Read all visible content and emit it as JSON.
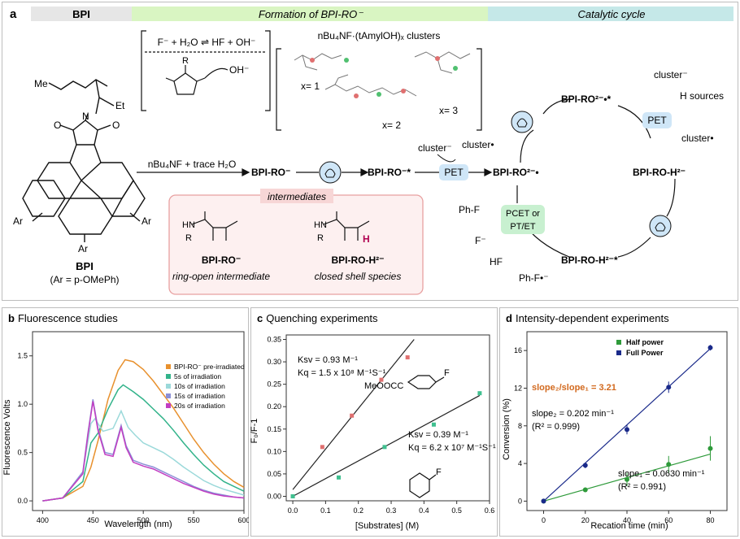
{
  "figure": {
    "panel_a": {
      "letter": "a",
      "header": {
        "bpi": "BPI",
        "formation": "Formation of BPI-RO⁻",
        "catalytic": "Catalytic cycle"
      },
      "colors": {
        "bpi_bar": "#e6e6e6",
        "formation_bar": "#d9f5c2",
        "catalytic_bar": "#c5e8e8",
        "pet_box": "#cfe6f7",
        "pcet_box": "#c8f0d0",
        "intermediates_border": "#e8a0a0",
        "intermediates_bg": "#fdf0f0",
        "accent_H": "#b00050"
      },
      "equation": "F⁻ + H₂O ⇌ HF + OH⁻",
      "oh_label": "OH⁻",
      "cluster_title": "nBu₄NF·(tAmylOH)ₓ clusters",
      "x1": "x= 1",
      "x2": "x= 2",
      "x3": "x= 3",
      "bpi_label": "BPI",
      "bpi_sub": "(Ar = p-OMePh)",
      "me1": "Me",
      "et": "Et",
      "ar": "Ar",
      "arrow_reagent": "nBu₄NF + trace H₂O",
      "species_ro": "BPI-RO⁻",
      "species_ro_star": "BPI-RO⁻*",
      "cluster_minus": "cluster⁻",
      "cluster_dot": "cluster•",
      "pet": "PET",
      "species_ro2": "BPI-RO²⁻•",
      "species_ro2_star": "BPI-RO²⁻•*",
      "h_sources": "H sources",
      "species_roh": "BPI-RO-H²⁻",
      "species_roh_star": "BPI-RO-H²⁻*",
      "phf": "Ph-F",
      "fminus": "F⁻",
      "hf": "HF",
      "phf_rad": "Ph-F•⁻",
      "pcet": "PCET or",
      "ptet": "PT/ET",
      "intermediates_title": "intermediates",
      "int1_label": "BPI-RO⁻",
      "int1_caption": "ring-open intermediate",
      "int2_label": "BPI-RO-H²⁻",
      "int2_caption": "closed shell species"
    },
    "panel_b": {
      "letter": "b",
      "title": "Fluorescence studies",
      "chart_data": {
        "type": "line",
        "xlabel": "Wavelength (nm)",
        "ylabel": "Fluorescence Volts",
        "xlim": [
          390,
          600
        ],
        "ylim": [
          -0.1,
          1.75
        ],
        "xticks": [
          400,
          450,
          500,
          550,
          600
        ],
        "yticks": [
          0.0,
          0.5,
          1.0,
          1.5
        ],
        "series": [
          {
            "name": "BPI-RO⁻ pre-irradiated",
            "color": "#e8912e",
            "x": [
              400,
              420,
              440,
              448,
              455,
              465,
              475,
              482,
              490,
              500,
              510,
              520,
              530,
              540,
              550,
              560,
              570,
              580,
              590,
              600
            ],
            "y": [
              0.0,
              0.03,
              0.15,
              0.35,
              0.62,
              1.05,
              1.35,
              1.46,
              1.44,
              1.36,
              1.24,
              1.1,
              0.96,
              0.8,
              0.64,
              0.5,
              0.38,
              0.28,
              0.2,
              0.14
            ]
          },
          {
            "name": "5s of irradiation",
            "color": "#32b38a",
            "x": [
              400,
              420,
              440,
              448,
              455,
              465,
              475,
              480,
              490,
              500,
              510,
              520,
              530,
              540,
              550,
              560,
              570,
              580,
              590,
              600
            ],
            "y": [
              0.0,
              0.03,
              0.2,
              0.6,
              0.7,
              0.95,
              1.15,
              1.2,
              1.13,
              1.05,
              0.95,
              0.85,
              0.73,
              0.6,
              0.48,
              0.37,
              0.28,
              0.2,
              0.15,
              0.1
            ]
          },
          {
            "name": "10s of irradiation",
            "color": "#9bd9da",
            "x": [
              400,
              420,
              440,
              448,
              452,
              460,
              470,
              478,
              485,
              492,
              500,
              510,
              520,
              530,
              540,
              550,
              560,
              570,
              580,
              590,
              600
            ],
            "y": [
              0.0,
              0.03,
              0.3,
              0.8,
              0.85,
              0.72,
              0.75,
              0.93,
              0.76,
              0.68,
              0.6,
              0.55,
              0.5,
              0.43,
              0.35,
              0.28,
              0.21,
              0.16,
              0.12,
              0.09,
              0.06
            ]
          },
          {
            "name": "15s of irradiation",
            "color": "#8b8fd6",
            "x": [
              400,
              420,
              440,
              445,
              450,
              455,
              462,
              470,
              478,
              483,
              490,
              500,
              510,
              520,
              530,
              540,
              550,
              560,
              570,
              580,
              590,
              600
            ],
            "y": [
              0.0,
              0.03,
              0.3,
              0.7,
              1.05,
              0.75,
              0.5,
              0.48,
              0.78,
              0.57,
              0.42,
              0.38,
              0.35,
              0.3,
              0.25,
              0.2,
              0.15,
              0.11,
              0.08,
              0.06,
              0.04,
              0.03
            ]
          },
          {
            "name": "20s of irradiation",
            "color": "#c23ec2",
            "x": [
              400,
              420,
              440,
              445,
              450,
              455,
              462,
              470,
              478,
              483,
              490,
              500,
              510,
              520,
              530,
              540,
              550,
              560,
              570,
              580,
              590,
              600
            ],
            "y": [
              0.0,
              0.03,
              0.28,
              0.68,
              1.03,
              0.73,
              0.48,
              0.46,
              0.76,
              0.55,
              0.4,
              0.36,
              0.33,
              0.28,
              0.23,
              0.18,
              0.14,
              0.1,
              0.07,
              0.05,
              0.04,
              0.03
            ]
          }
        ],
        "legend_position": "upper-right"
      }
    },
    "panel_c": {
      "letter": "c",
      "title": "Quenching experiments",
      "meoocc": "MeOOCC",
      "fluoro": "F",
      "ann1_ksv": "Ksv = 0.93 M⁻¹",
      "ann1_kq": "Kq = 1.5 x 10⁸ M⁻¹S⁻¹",
      "ann2_ksv": "Ksv = 0.39 M⁻¹",
      "ann2_kq": "Kq = 6.2 x 10⁷ M⁻¹S⁻¹",
      "chart_data": {
        "type": "scatter",
        "xlabel": "[Substrates] (M)",
        "ylabel": "F₀/F-1",
        "xlim": [
          -0.02,
          0.6
        ],
        "ylim": [
          -0.01,
          0.36
        ],
        "xticks": [
          0.0,
          0.1,
          0.2,
          0.3,
          0.4,
          0.5,
          0.6
        ],
        "yticks": [
          0.0,
          0.05,
          0.1,
          0.15,
          0.2,
          0.25,
          0.3,
          0.35
        ],
        "series": [
          {
            "name": "methyl 4-fluorobenzoate",
            "color": "#e07070",
            "x": [
              0.0,
              0.09,
              0.18,
              0.27,
              0.35
            ],
            "y": [
              0.0,
              0.11,
              0.18,
              0.26,
              0.31
            ],
            "fit": [
              [
                0.0,
                0.015
              ],
              [
                0.37,
                0.35
              ]
            ]
          },
          {
            "name": "fluorobenzene",
            "color": "#40c090",
            "x": [
              0.0,
              0.14,
              0.28,
              0.43,
              0.57
            ],
            "y": [
              0.0,
              0.042,
              0.11,
              0.16,
              0.23
            ],
            "fit": [
              [
                0.0,
                0.0
              ],
              [
                0.57,
                0.225
              ]
            ]
          }
        ]
      }
    },
    "panel_d": {
      "letter": "d",
      "title": "Intensity-dependent experiments",
      "ratio": "slope₂/slope₁ = 3.21",
      "slope2": "slope₂ = 0.202 min⁻¹",
      "r2_2": "(R² = 0.999)",
      "slope1": "slope₁ = 0.0630 min⁻¹",
      "r2_1": "(R² = 0.991)",
      "chart_data": {
        "type": "scatter",
        "xlabel": "Recation time (min)",
        "ylabel": "Conversion (%)",
        "xlim": [
          -8,
          88
        ],
        "ylim": [
          -1,
          18
        ],
        "xticks": [
          0,
          20,
          40,
          60,
          80
        ],
        "yticks": [
          0,
          4,
          8,
          12,
          16
        ],
        "legend_position": "upper-left",
        "series": [
          {
            "name": "Half power",
            "color": "#2e9a3a",
            "x": [
              0,
              20,
              40,
              60,
              80
            ],
            "y": [
              0.0,
              1.2,
              2.3,
              3.9,
              5.6
            ],
            "err": [
              0.1,
              0.25,
              0.7,
              0.9,
              1.3
            ],
            "fit": [
              [
                0,
                0.0
              ],
              [
                80,
                5.0
              ]
            ]
          },
          {
            "name": "Full Power",
            "color": "#1a2a8a",
            "x": [
              0,
              20,
              40,
              60,
              80
            ],
            "y": [
              0.0,
              3.8,
              7.6,
              12.1,
              16.3
            ],
            "err": [
              0.1,
              0.3,
              0.5,
              0.6,
              0.3
            ],
            "fit": [
              [
                0,
                0.0
              ],
              [
                80,
                16.2
              ]
            ]
          }
        ]
      }
    }
  }
}
